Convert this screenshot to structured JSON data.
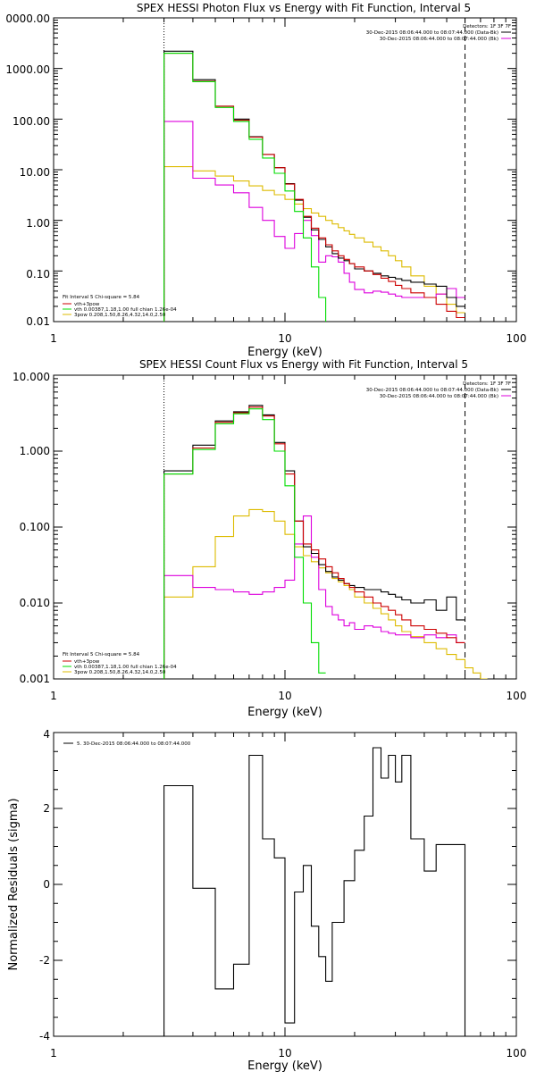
{
  "chart_data": [
    {
      "type": "line",
      "title": "SPEX HESSI Photon Flux vs Energy with Fit Function, Interval 5",
      "xlabel": "Energy (keV)",
      "ylabel": "",
      "xscale": "log",
      "yscale": "log",
      "xlim": [
        1,
        100
      ],
      "ylim": [
        0.01,
        10000
      ],
      "x_tick_labels": [
        "1",
        "10",
        "100"
      ],
      "y_tick_labels": [
        "0.01",
        "0.10",
        "1.00",
        "10.00",
        "100.00",
        "1000.00",
        "0000.00"
      ],
      "grid": false,
      "legend_position": "bottom-left",
      "fit_range_markers_keV": [
        3.0,
        60.0
      ],
      "detectors_label": "Detectors: 1F 3F 7F",
      "time_labels": [
        "30-Dec-2015 08:06:44.000 to 08:07:44.000 (Data-Bk)",
        "30-Dec-2015 08:06:44.000 to 08:07:44.000 (Bk)"
      ],
      "fit_info": "Fit Interval 5   Chi-square = 5.84",
      "legend": [
        "vth+3pow",
        "vth 0.00387,1.18,1.00  full chian 1.26e-04",
        "3pow 0.208,1.50,8.26,4.32,14.0,2.50"
      ],
      "colors": {
        "data": "#000000",
        "total": "#cc0000",
        "vth": "#00dd00",
        "pow": "#ddbb00",
        "bk": "#dd00dd"
      },
      "edges": [
        3.0,
        4.0,
        5.0,
        6.0,
        7.0,
        8.0,
        9.0,
        10.0,
        11.0,
        12.0,
        13.0,
        14.0,
        15.0,
        16.0,
        17.0,
        18.0,
        19.0,
        20.0,
        22.0,
        24.0,
        26.0,
        28.0,
        30.0,
        32.0,
        35.0,
        40.0,
        45.0,
        50.0,
        55.0,
        60.0
      ],
      "series": [
        {
          "key": "data",
          "values": [
            2200,
            600,
            180,
            100,
            45,
            20,
            11,
            5.3,
            2.5,
            1.15,
            0.65,
            0.42,
            0.3,
            0.22,
            0.18,
            0.16,
            0.14,
            0.11,
            0.1,
            0.09,
            0.08,
            0.075,
            0.07,
            0.065,
            0.06,
            0.055,
            0.05,
            0.03,
            0.02
          ]
        },
        {
          "key": "total",
          "values": [
            2000,
            560,
            180,
            95,
            44,
            20,
            11,
            5.2,
            2.6,
            1.2,
            0.7,
            0.45,
            0.33,
            0.25,
            0.2,
            0.17,
            0.14,
            0.12,
            0.1,
            0.085,
            0.072,
            0.062,
            0.052,
            0.045,
            0.037,
            0.03,
            0.022,
            0.016,
            0.012
          ]
        },
        {
          "key": "vth",
          "values": [
            2000,
            550,
            170,
            90,
            40,
            17,
            8.5,
            3.8,
            1.5,
            0.45,
            0.12,
            0.03,
            0.008
          ]
        },
        {
          "key": "pow",
          "values": [
            11.5,
            9.5,
            7.5,
            6.0,
            4.8,
            3.9,
            3.2,
            2.6,
            2.1,
            1.7,
            1.4,
            1.2,
            1.0,
            0.85,
            0.72,
            0.62,
            0.53,
            0.45,
            0.37,
            0.3,
            0.25,
            0.2,
            0.16,
            0.12,
            0.08,
            0.05,
            0.035,
            0.022,
            0.015
          ]
        },
        {
          "key": "bk",
          "values": [
            90,
            6.8,
            5.0,
            3.5,
            1.8,
            1.0,
            0.48,
            0.28,
            0.55,
            1.0,
            0.5,
            0.15,
            0.2,
            0.19,
            0.15,
            0.09,
            0.06,
            0.043,
            0.037,
            0.04,
            0.038,
            0.035,
            0.032,
            0.03,
            0.03,
            0.03,
            0.035,
            0.045,
            0.03
          ]
        }
      ]
    },
    {
      "type": "line",
      "title": "SPEX HESSI Count Flux vs Energy with Fit Function, Interval 5",
      "xlabel": "Energy (keV)",
      "ylabel": "",
      "xscale": "log",
      "yscale": "log",
      "xlim": [
        1,
        100
      ],
      "ylim": [
        0.001,
        10
      ],
      "x_tick_labels": [
        "1",
        "10",
        "100"
      ],
      "y_tick_labels": [
        "0.001",
        "0.010",
        "0.100",
        "1.000",
        "10.000"
      ],
      "grid": false,
      "legend_position": "bottom-left",
      "fit_range_markers_keV": [
        3.0,
        60.0
      ],
      "detectors_label": "Detectors: 1F 3F 7F",
      "time_labels": [
        "30-Dec-2015 08:06:44.000 to 08:07:44.000 (Data-Bk)",
        "30-Dec-2015 08:06:44.000 to 08:07:44.000 (Bk)"
      ],
      "fit_info": "Fit Interval 5   Chi-square = 5.84",
      "legend": [
        "vth+3pow",
        "vth 0.00387,1.18,1.00  full chian 1.26e-04",
        "3pow 0.208,1.50,8.26,4.32,14.0,2.50"
      ],
      "colors": {
        "data": "#000000",
        "total": "#cc0000",
        "vth": "#00dd00",
        "pow": "#ddbb00",
        "bk": "#dd00dd"
      },
      "edges": [
        3.0,
        4.0,
        5.0,
        6.0,
        7.0,
        8.0,
        9.0,
        10.0,
        11.0,
        12.0,
        13.0,
        14.0,
        15.0,
        16.0,
        17.0,
        18.0,
        19.0,
        20.0,
        22.0,
        24.0,
        26.0,
        28.0,
        30.0,
        32.0,
        35.0,
        40.0,
        45.0,
        50.0,
        55.0,
        60.0,
        65.0,
        70.0,
        75.0
      ],
      "series": [
        {
          "key": "data",
          "values": [
            0.55,
            1.2,
            2.5,
            3.3,
            4.0,
            3.0,
            1.3,
            0.55,
            0.12,
            0.055,
            0.045,
            0.032,
            0.026,
            0.022,
            0.02,
            0.018,
            0.017,
            0.016,
            0.015,
            0.015,
            0.014,
            0.013,
            0.012,
            0.011,
            0.01,
            0.011,
            0.008,
            0.012,
            0.006
          ]
        },
        {
          "key": "total",
          "values": [
            0.5,
            1.1,
            2.4,
            3.2,
            3.8,
            2.9,
            1.25,
            0.5,
            0.12,
            0.06,
            0.05,
            0.038,
            0.03,
            0.025,
            0.021,
            0.018,
            0.016,
            0.014,
            0.012,
            0.01,
            0.009,
            0.008,
            0.007,
            0.006,
            0.005,
            0.0045,
            0.004,
            0.0035,
            0.003
          ]
        },
        {
          "key": "vth",
          "values": [
            0.5,
            1.05,
            2.3,
            3.1,
            3.6,
            2.6,
            1.0,
            0.35,
            0.04,
            0.01,
            0.003,
            0.0012
          ]
        },
        {
          "key": "pow",
          "values": [
            0.012,
            0.03,
            0.075,
            0.14,
            0.17,
            0.16,
            0.12,
            0.08,
            0.055,
            0.042,
            0.035,
            0.029,
            0.025,
            0.021,
            0.019,
            0.017,
            0.015,
            0.012,
            0.01,
            0.0085,
            0.0072,
            0.006,
            0.005,
            0.0042,
            0.0036,
            0.003,
            0.0025,
            0.0021,
            0.0018,
            0.0014,
            0.0012,
            0.001
          ]
        },
        {
          "key": "bk",
          "values": [
            0.023,
            0.016,
            0.015,
            0.014,
            0.013,
            0.014,
            0.016,
            0.02,
            0.06,
            0.14,
            0.04,
            0.015,
            0.009,
            0.007,
            0.006,
            0.005,
            0.0055,
            0.0045,
            0.005,
            0.0048,
            0.0042,
            0.004,
            0.0038,
            0.0038,
            0.0035,
            0.0038,
            0.0035,
            0.0038,
            0.003
          ]
        }
      ]
    },
    {
      "type": "line",
      "title": "",
      "xlabel": "Energy (keV)",
      "ylabel": "Normalized Residuals (sigma)",
      "xscale": "log",
      "yscale": "linear",
      "xlim": [
        1,
        100
      ],
      "ylim": [
        -4,
        4
      ],
      "x_tick_labels": [
        "1",
        "10",
        "100"
      ],
      "y_tick_labels": [
        "-4",
        "-2",
        "0",
        "2",
        "4"
      ],
      "grid": false,
      "legend_position": "top-left",
      "legend": [
        "5. 30-Dec-2015 08:06:44.000 to 08:07:44.000"
      ],
      "colors": {
        "residuals": "#000000"
      },
      "edges": [
        3.0,
        4.0,
        5.0,
        6.0,
        7.0,
        8.0,
        9.0,
        10.0,
        11.0,
        12.0,
        13.0,
        14.0,
        15.0,
        16.0,
        18.0,
        20.0,
        22.0,
        24.0,
        26.0,
        28.0,
        30.0,
        32.0,
        35.0,
        40.0,
        45.0,
        50.0,
        55.0,
        60.0
      ],
      "series": [
        {
          "key": "residuals",
          "values": [
            2.6,
            -0.1,
            -2.75,
            -2.1,
            3.4,
            1.2,
            0.7,
            -3.65,
            -0.2,
            0.5,
            -1.1,
            -1.9,
            -2.55,
            -1.0,
            0.1,
            0.9,
            1.8,
            3.6,
            2.8,
            3.4,
            2.7,
            3.4,
            1.2,
            0.35,
            1.05,
            1.05,
            1.05
          ]
        }
      ]
    }
  ]
}
